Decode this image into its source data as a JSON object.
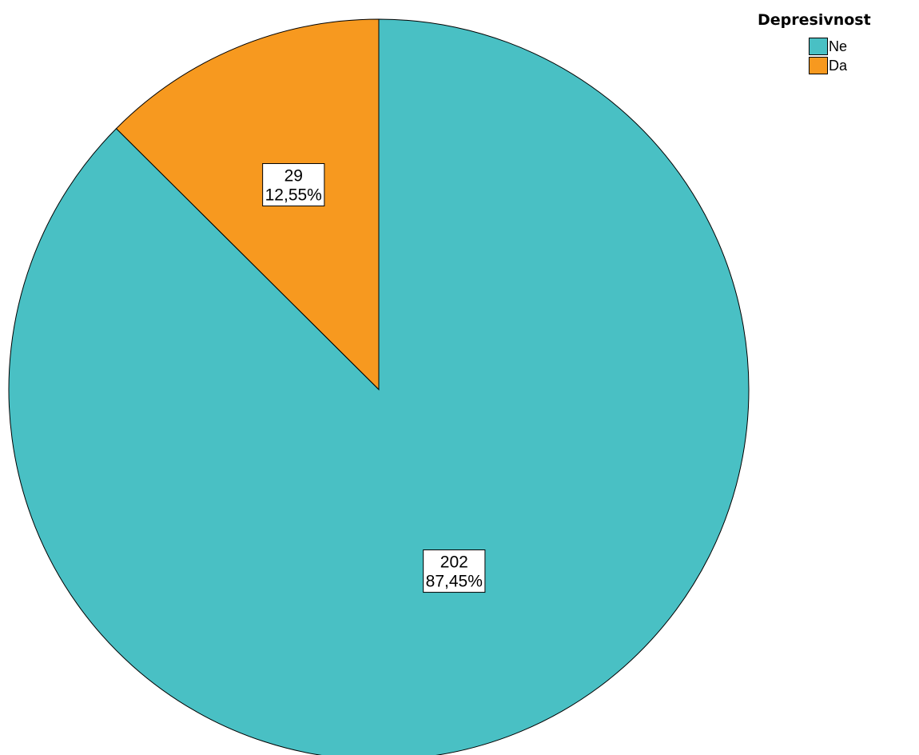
{
  "chart_data": {
    "type": "pie",
    "title": "",
    "legend_title": "Depresivnost",
    "legend_position": "top-right",
    "categories": [
      "Ne",
      "Da"
    ],
    "values": [
      202,
      29
    ],
    "percentages": [
      "87,45%",
      "12,55%"
    ],
    "labels": [
      "202",
      "29"
    ],
    "colors": [
      "#49c0c4",
      "#f7991f"
    ],
    "start_angle_degrees": 0,
    "direction": "counterclockwise"
  }
}
